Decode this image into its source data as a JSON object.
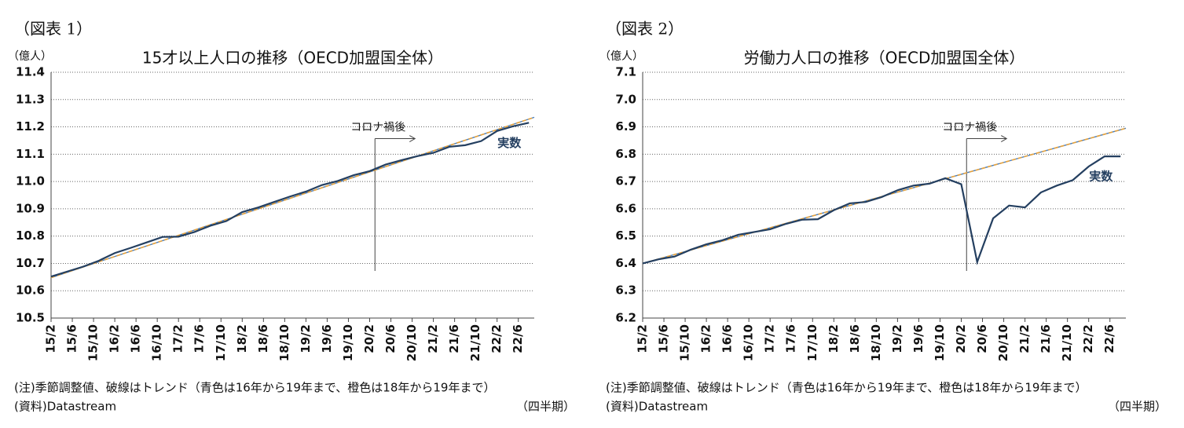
{
  "chart_data": [
    {
      "type": "line",
      "figure_label": "（図表 1）",
      "unit": "（億人）",
      "title": "15才以上人口の推移（OECD加盟国全体）",
      "x": [
        "15/2",
        "15/5",
        "15/8",
        "15/11",
        "16/2",
        "16/5",
        "16/8",
        "16/11",
        "17/2",
        "17/5",
        "17/8",
        "17/11",
        "18/2",
        "18/5",
        "18/8",
        "18/11",
        "19/2",
        "19/5",
        "19/8",
        "19/11",
        "20/2",
        "20/5",
        "20/8",
        "20/11",
        "21/2",
        "21/5",
        "21/8",
        "21/11",
        "22/2",
        "22/5",
        "22/8"
      ],
      "xlim": [
        "15/2",
        "22/9"
      ],
      "xticks": [
        "15/2",
        "15/6",
        "15/10",
        "16/2",
        "16/6",
        "16/10",
        "17/2",
        "17/6",
        "17/10",
        "18/2",
        "18/6",
        "18/10",
        "19/2",
        "19/6",
        "19/10",
        "20/2",
        "20/6",
        "20/10",
        "21/2",
        "21/6",
        "21/10",
        "22/2",
        "22/6"
      ],
      "ylim": [
        10.5,
        11.4
      ],
      "yticks": [
        10.5,
        10.6,
        10.7,
        10.8,
        10.9,
        {
          "value": 11,
          "label": "11.0"
        },
        11.1,
        11.2,
        11.3,
        11.4
      ],
      "grid": true,
      "series": [
        {
          "name": "実数",
          "color": "#243f60",
          "values": [
            10.652,
            10.67,
            10.688,
            10.71,
            10.738,
            10.757,
            10.777,
            10.797,
            10.798,
            10.815,
            10.838,
            10.855,
            10.888,
            10.905,
            10.925,
            10.945,
            10.963,
            10.987,
            11.002,
            11.023,
            11.038,
            11.062,
            11.078,
            11.093,
            11.105,
            11.127,
            11.133,
            11.148,
            11.185,
            11.202,
            11.215
          ]
        },
        {
          "color": "#4a7ebb",
          "x": [
            "15/2",
            "22/9"
          ],
          "values": [
            10.648,
            11.235
          ]
        },
        {
          "color": "#e8a33c",
          "x": [
            "15/2",
            "22/9"
          ],
          "values": [
            10.648,
            11.235
          ]
        }
      ],
      "annotation": {
        "text": "コロナ禍後",
        "x": "20/3"
      },
      "note": "(注)季節調整値、破線はトレンド（青色は16年から19年まで、橙色は18年から19年まで）",
      "source": "(資料)Datastream",
      "x_unit": "（四半期）"
    },
    {
      "type": "line",
      "figure_label": "（図表 2）",
      "unit": "（億人）",
      "title": "労働力人口の推移（OECD加盟国全体）",
      "x": [
        "15/2",
        "15/5",
        "15/8",
        "15/11",
        "16/2",
        "16/5",
        "16/8",
        "16/11",
        "17/2",
        "17/5",
        "17/8",
        "17/11",
        "18/2",
        "18/5",
        "18/8",
        "18/11",
        "19/2",
        "19/5",
        "19/8",
        "19/11",
        "20/2",
        "20/5",
        "20/8",
        "20/11",
        "21/2",
        "21/5",
        "21/8",
        "21/11",
        "22/2",
        "22/5",
        "22/8"
      ],
      "xlim": [
        "15/2",
        "22/9"
      ],
      "xticks": [
        "15/2",
        "15/6",
        "15/10",
        "16/2",
        "16/6",
        "16/10",
        "17/2",
        "17/6",
        "17/10",
        "18/2",
        "18/6",
        "18/10",
        "19/2",
        "19/6",
        "19/10",
        "20/2",
        "20/6",
        "20/10",
        "21/2",
        "21/6",
        "21/10",
        "22/2",
        "22/6"
      ],
      "ylim": [
        6.2,
        7.1
      ],
      "yticks": [
        6.2,
        6.3,
        6.4,
        6.5,
        6.6,
        6.7,
        6.8,
        6.9,
        {
          "value": 7,
          "label": "7.0"
        },
        7.1
      ],
      "grid": true,
      "series": [
        {
          "name": "実数",
          "color": "#243f60",
          "values": [
            6.4,
            6.415,
            6.425,
            6.45,
            6.47,
            6.485,
            6.505,
            6.515,
            6.525,
            6.545,
            6.56,
            6.562,
            6.595,
            6.62,
            6.625,
            6.643,
            6.668,
            6.685,
            6.692,
            6.712,
            6.69,
            6.405,
            6.565,
            6.612,
            6.605,
            6.66,
            6.685,
            6.705,
            6.755,
            6.792,
            6.792
          ]
        },
        {
          "color": "#4a7ebb",
          "x": [
            "15/2",
            "22/9"
          ],
          "values": [
            6.4,
            6.895
          ]
        },
        {
          "color": "#e8a33c",
          "x": [
            "15/2",
            "22/9"
          ],
          "values": [
            6.4,
            6.895
          ]
        }
      ],
      "annotation": {
        "text": "コロナ禍後",
        "x": "20/3"
      },
      "note": "(注)季節調整値、破線はトレンド（青色は16年から19年まで、橙色は18年から19年まで）",
      "source": "(資料)Datastream",
      "x_unit": "（四半期）"
    }
  ]
}
